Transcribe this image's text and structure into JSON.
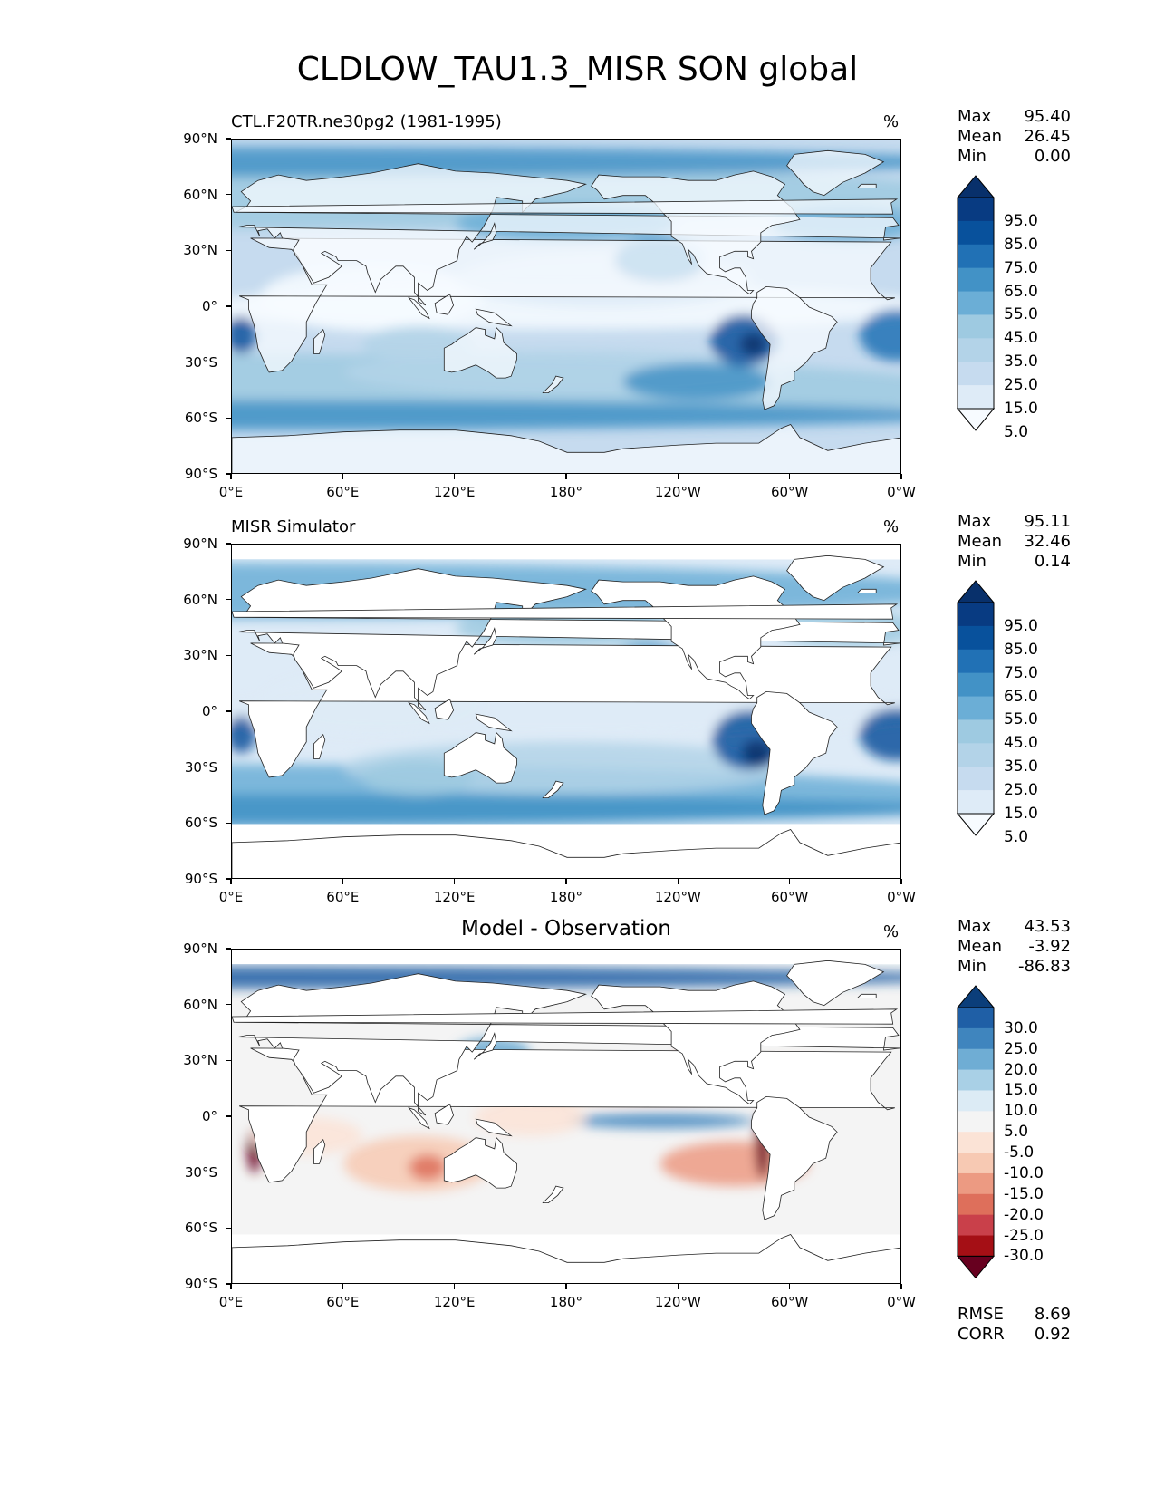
{
  "title": "CLDLOW_TAU1.3_MISR SON global",
  "colors": {
    "blues": [
      "#f7fbff",
      "#deebf7",
      "#c6dbef",
      "#b3d3e8",
      "#9ecae1",
      "#6baed6",
      "#4292c6",
      "#2171b5",
      "#08519c",
      "#083b82",
      "#08306b"
    ],
    "diff": [
      "#67001f",
      "#a50f15",
      "#c9404a",
      "#de6f5b",
      "#ec9a82",
      "#f7c9b3",
      "#fbe3d6",
      "#f4f4f4",
      "#dcebf5",
      "#a9d0e6",
      "#6fadd4",
      "#3f85be",
      "#1f5fa6",
      "#0b3e7a"
    ]
  },
  "panels": [
    {
      "title": "CTL.F20TR.ne30pg2 (1981-1995)",
      "units": "%",
      "stats": {
        "max_label": "Max",
        "max": "95.40",
        "mean_label": "Mean",
        "mean": "26.45",
        "min_label": "Min",
        "min": "0.00"
      },
      "colorbar": [
        "95.0",
        "85.0",
        "75.0",
        "65.0",
        "55.0",
        "45.0",
        "35.0",
        "25.0",
        "15.0",
        "5.0"
      ]
    },
    {
      "title": "MISR Simulator",
      "units": "%",
      "stats": {
        "max_label": "Max",
        "max": "95.11",
        "mean_label": "Mean",
        "mean": "32.46",
        "min_label": "Min",
        "min": "0.14"
      },
      "colorbar": [
        "95.0",
        "85.0",
        "75.0",
        "65.0",
        "55.0",
        "45.0",
        "35.0",
        "25.0",
        "15.0",
        "5.0"
      ]
    },
    {
      "title": "Model - Observation",
      "units": "%",
      "stats": {
        "max_label": "Max",
        "max": "43.53",
        "mean_label": "Mean",
        "mean": "-3.92",
        "min_label": "Min",
        "min": "-86.83"
      },
      "colorbar": [
        "30.0",
        "25.0",
        "20.0",
        "15.0",
        "10.0",
        "5.0",
        "-5.0",
        "-10.0",
        "-15.0",
        "-20.0",
        "-25.0",
        "-30.0"
      ],
      "metrics": {
        "rmse_label": "RMSE",
        "rmse": "8.69",
        "corr_label": "CORR",
        "corr": "0.92"
      }
    }
  ],
  "axes": {
    "lat_ticks": [
      "90°N",
      "60°N",
      "30°N",
      "0°",
      "30°S",
      "60°S",
      "90°S"
    ],
    "lon_ticks": [
      "0°E",
      "60°E",
      "120°E",
      "180°",
      "120°W",
      "60°W",
      "0°W"
    ]
  },
  "chart_data": [
    {
      "type": "heatmap",
      "title": "CTL.F20TR.ne30pg2 (1981-1995)",
      "variable": "CLDLOW_TAU1.3_MISR",
      "units": "%",
      "x_range": [
        0,
        360
      ],
      "y_range": [
        -90,
        90
      ],
      "levels": [
        5,
        15,
        25,
        35,
        45,
        55,
        65,
        75,
        85,
        95
      ],
      "max": 95.4,
      "mean": 26.45,
      "min": 0.0
    },
    {
      "type": "heatmap",
      "title": "MISR Simulator",
      "units": "%",
      "x_range": [
        0,
        360
      ],
      "y_range": [
        -90,
        90
      ],
      "levels": [
        5,
        15,
        25,
        35,
        45,
        55,
        65,
        75,
        85,
        95
      ],
      "max": 95.11,
      "mean": 32.46,
      "min": 0.14
    },
    {
      "type": "heatmap",
      "title": "Model - Observation",
      "units": "%",
      "x_range": [
        0,
        360
      ],
      "y_range": [
        -90,
        90
      ],
      "levels": [
        -30,
        -25,
        -20,
        -15,
        -10,
        -5,
        5,
        10,
        15,
        20,
        25,
        30
      ],
      "max": 43.53,
      "mean": -3.92,
      "min": -86.83,
      "rmse": 8.69,
      "corr": 0.92
    }
  ]
}
